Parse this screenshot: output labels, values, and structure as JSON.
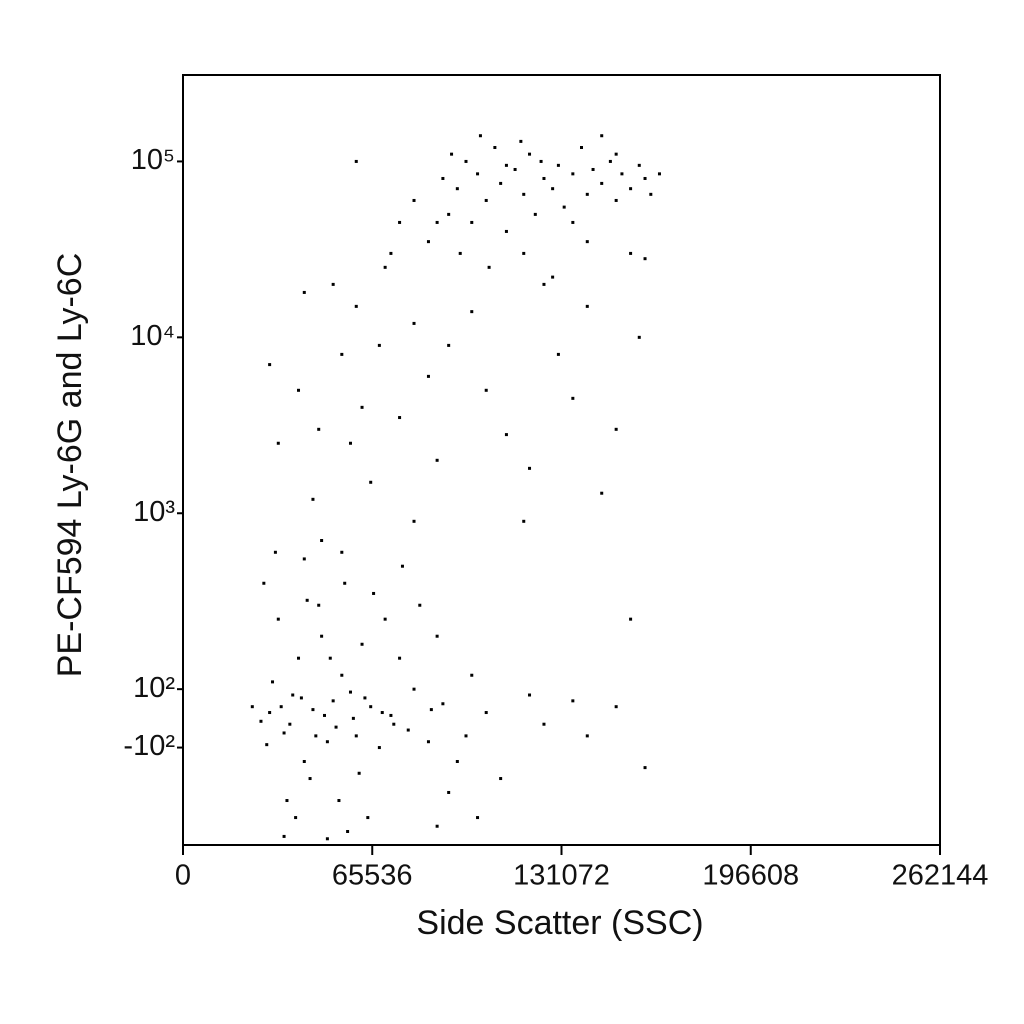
{
  "chart_data": {
    "type": "scatter",
    "xlabel": "Side Scatter (SSC)",
    "ylabel": "PE-CF594 Ly-6G and Ly-6C",
    "yscale": "biexponential",
    "color": "#000000",
    "xlim": [
      0,
      262144
    ],
    "xticks": [
      0,
      65536,
      131072,
      196608,
      262144
    ],
    "ylim": [
      -358,
      310000
    ],
    "yticks": [
      {
        "value": -100,
        "label": "-10²"
      },
      {
        "value": 100,
        "label": "10²"
      },
      {
        "value": 1000,
        "label": "10³"
      },
      {
        "value": 10000,
        "label": "10⁴"
      },
      {
        "value": 100000,
        "label": "10⁵"
      }
    ],
    "x": [
      30000,
      35000,
      38000,
      40000,
      42000,
      45000,
      48000,
      50000,
      52000,
      55000,
      33000,
      36000,
      44000,
      47000,
      53000,
      58000,
      60000,
      62000,
      65000,
      68000,
      70000,
      72000,
      75000,
      78000,
      80000,
      85000,
      88000,
      90000,
      95000,
      100000,
      27000,
      29000,
      31000,
      34000,
      37000,
      39000,
      41000,
      43000,
      46000,
      49000,
      51000,
      54000,
      56000,
      59000,
      61000,
      63000,
      66000,
      69000,
      73000,
      76000,
      82000,
      86000,
      92000,
      98000,
      105000,
      110000,
      120000,
      125000,
      135000,
      140000,
      150000,
      155000,
      160000,
      24000,
      28000,
      32000,
      42000,
      48000,
      57000,
      35000,
      50000,
      64000,
      88000,
      102000,
      30000,
      33000,
      40000,
      42000,
      45000,
      47000,
      52000,
      55000,
      58000,
      60000,
      62000,
      65000,
      68000,
      70000,
      75000,
      80000,
      85000,
      88000,
      92000,
      100000,
      105000,
      112000,
      118000,
      125000,
      130000,
      135000,
      140000,
      145000,
      150000,
      158000,
      120000,
      80000,
      55000,
      80000,
      85000,
      90000,
      92000,
      95000,
      98000,
      100000,
      102000,
      105000,
      108000,
      110000,
      112000,
      115000,
      118000,
      120000,
      122000,
      125000,
      128000,
      130000,
      132000,
      135000,
      138000,
      140000,
      142000,
      145000,
      148000,
      150000,
      152000,
      155000,
      158000,
      160000,
      162000,
      165000,
      96000,
      106000,
      118000,
      128000,
      140000,
      155000,
      160000,
      88000,
      75000,
      72000,
      103000,
      117000,
      145000,
      135000,
      112000,
      124000,
      150000,
      93000,
      60000
    ],
    "y": [
      20,
      -50,
      80,
      150,
      -120,
      30,
      200,
      -80,
      60,
      120,
      250,
      -200,
      -150,
      300,
      -30,
      90,
      -60,
      180,
      40,
      -100,
      250,
      10,
      150,
      -40,
      100,
      -80,
      200,
      50,
      -120,
      120,
      -10,
      -90,
      110,
      40,
      -20,
      -250,
      70,
      320,
      -60,
      10,
      150,
      -200,
      400,
      0,
      -140,
      70,
      350,
      20,
      -20,
      500,
      300,
      30,
      -180,
      -60,
      20,
      -150,
      80,
      -20,
      60,
      -60,
      40,
      250,
      -130,
      40,
      400,
      600,
      550,
      700,
      -300,
      -320,
      -330,
      -250,
      -280,
      -250,
      7000,
      2500,
      5000,
      18000,
      1200,
      3000,
      20000,
      8000,
      2500,
      15000,
      4000,
      1500,
      9000,
      25000,
      3500,
      12000,
      6000,
      2000,
      9000,
      14000,
      5000,
      2800,
      900,
      20000,
      8000,
      4500,
      15000,
      1300,
      3000,
      10000,
      1800,
      900,
      600,
      60000,
      35000,
      80000,
      50000,
      70000,
      100000,
      45000,
      85000,
      60000,
      120000,
      75000,
      40000,
      90000,
      65000,
      110000,
      50000,
      80000,
      70000,
      95000,
      55000,
      85000,
      120000,
      65000,
      90000,
      75000,
      100000,
      60000,
      85000,
      70000,
      95000,
      80000,
      65000,
      85000,
      30000,
      25000,
      30000,
      22000,
      35000,
      30000,
      28000,
      45000,
      45000,
      30000,
      140000,
      130000,
      140000,
      45000,
      95000,
      100000,
      110000,
      110000,
      100000
    ]
  }
}
